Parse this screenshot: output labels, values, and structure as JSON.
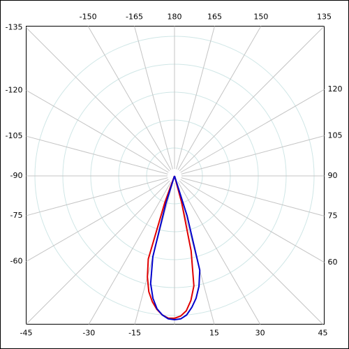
{
  "chart_data": {
    "type": "polar",
    "theta": [
      -25,
      -22.5,
      -20,
      -17.5,
      -15,
      -12.5,
      -10,
      -7.5,
      -5,
      -2.5,
      0,
      2.5,
      5,
      7.5,
      10,
      12.5,
      15,
      17.5,
      20,
      22.5,
      25
    ],
    "series": [
      {
        "color": "#e00000",
        "values": [
          0,
          0,
          40,
          125,
          150,
          170,
          183,
          193,
          200,
          204,
          204,
          201,
          194,
          180,
          160,
          110,
          40,
          0,
          0,
          0,
          0
        ]
      },
      {
        "color": "#0000cc",
        "values": [
          0,
          0,
          0,
          40,
          120,
          158,
          178,
          192,
          200,
          205,
          206,
          205,
          200,
          190,
          178,
          162,
          140,
          60,
          0,
          0,
          0
        ]
      }
    ],
    "rlim": [
      0,
      210
    ],
    "rticks": [
      40,
      80,
      120,
      160,
      200
    ],
    "angle_ticks": [
      -165,
      -150,
      -135,
      -120,
      -105,
      -90,
      -75,
      -60,
      -45,
      -30,
      -15,
      {
        "value": 0,
        "label": null
      },
      15,
      30,
      45,
      60,
      75,
      90,
      105,
      120,
      135,
      150,
      165,
      180
    ],
    "grid": true
  }
}
